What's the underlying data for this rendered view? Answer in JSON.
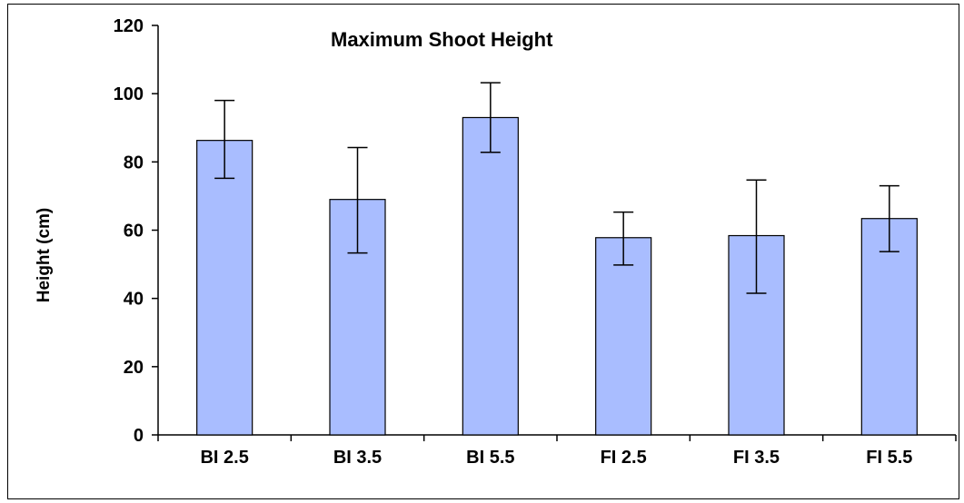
{
  "chart_data": {
    "type": "bar",
    "title": "Maximum Shoot Height",
    "xlabel": "",
    "ylabel": "Height (cm)",
    "ylim": [
      0,
      120
    ],
    "yticks": [
      0,
      20,
      40,
      60,
      80,
      100,
      120
    ],
    "categories": [
      "BI 2.5",
      "BI 3.5",
      "BI 5.5",
      "FI 2.5",
      "FI 3.5",
      "FI 5.5"
    ],
    "values": [
      86.3,
      69.0,
      93.0,
      57.8,
      58.4,
      63.4
    ],
    "error_low": [
      75.2,
      53.3,
      82.8,
      49.8,
      41.5,
      53.7
    ],
    "error_high": [
      98.0,
      84.2,
      103.2,
      65.3,
      74.7,
      73.0
    ],
    "grid": false,
    "legend": "none",
    "bar_color": "#a9bdff",
    "bar_edge_color": "#000000"
  }
}
